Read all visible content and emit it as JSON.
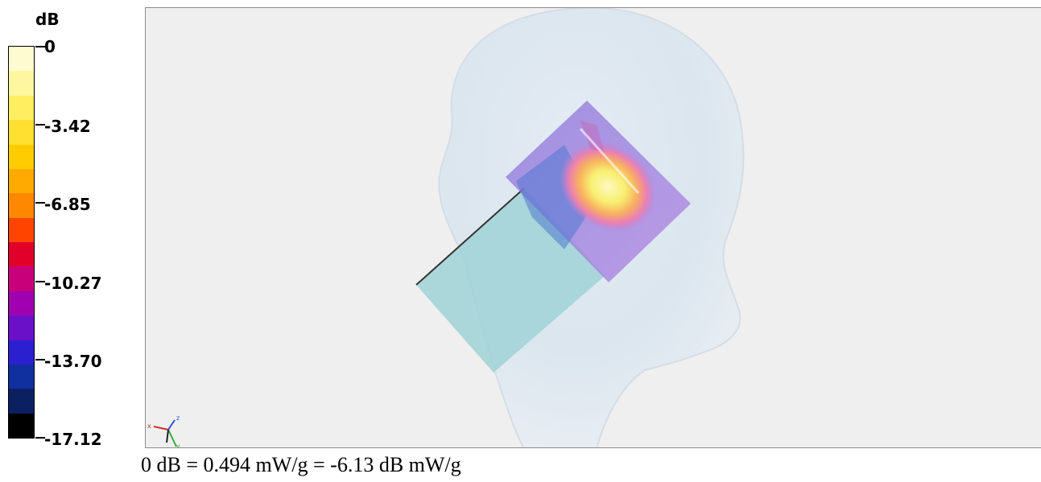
{
  "colorbar": {
    "unit": "dB",
    "tick_labels": [
      "0",
      "-3.42",
      "-6.85",
      "-10.27",
      "-13.70",
      "-17.12"
    ],
    "colors": [
      "#fffbd0",
      "#fff6a0",
      "#ffee60",
      "#ffe030",
      "#ffcc00",
      "#ffaa00",
      "#ff8800",
      "#ff4400",
      "#e0002a",
      "#c8007a",
      "#a000b0",
      "#6a10c8",
      "#2a20d0",
      "#1030a0",
      "#0a2060",
      "#000000"
    ]
  },
  "viewport": {
    "background": "#efefef",
    "axes": {
      "x": "x",
      "y": "y",
      "z": "z"
    }
  },
  "caption": "0 dB = 0.494 mW/g = -6.13 dB mW/g"
}
